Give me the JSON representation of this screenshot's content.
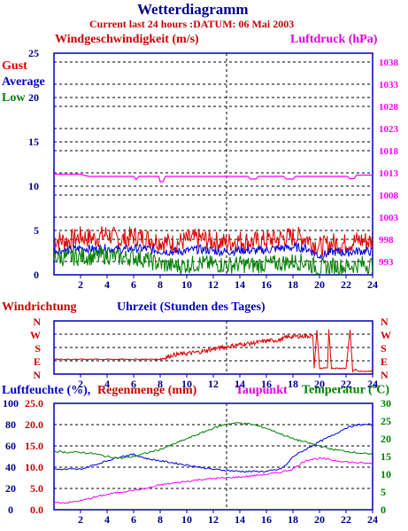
{
  "header": {
    "title": "Wetterdiagramm",
    "subtitle": "Current last 24 hours :DATUM: 06 Mai 2003"
  },
  "colors": {
    "red": "#e00000",
    "blue": "#0000e0",
    "green": "#008000",
    "magenta": "#ff00ff",
    "darkblue": "#00008b",
    "axis": "#0000b0"
  },
  "chart_data": [
    {
      "type": "line",
      "title": "Windgeschwindigkeit (m/s)",
      "ylabel": "Windgeschwindigkeit (m/s)",
      "y2label": "Luftdruck (hPa)",
      "xlabel": "",
      "x_ticks": [
        2,
        4,
        6,
        8,
        10,
        12,
        14,
        16,
        18,
        20,
        22,
        24
      ],
      "ylim": [
        0,
        25
      ],
      "y_ticks": [
        0,
        5,
        10,
        15,
        20,
        25
      ],
      "y2lim": [
        990,
        1040
      ],
      "y2_ticks": [
        993,
        998,
        1003,
        1008,
        1013,
        1018,
        1023,
        1028,
        1033,
        1038
      ],
      "grid": true,
      "series": [
        {
          "name": "Gust",
          "axis": "left",
          "color": "#e00000",
          "x": [
            0,
            1,
            2,
            3,
            4,
            5,
            6,
            7,
            8,
            9,
            10,
            11,
            12,
            13,
            14,
            15,
            16,
            17,
            18,
            19,
            20,
            21,
            22,
            23,
            24
          ],
          "values": [
            4,
            3.8,
            4.3,
            4.1,
            4.6,
            3.9,
            4.4,
            4.1,
            3.8,
            3.5,
            3.9,
            4.1,
            3.8,
            3.6,
            3.9,
            3.7,
            3.9,
            4.1,
            4.3,
            4.2,
            3.1,
            3.6,
            3.5,
            3.9,
            3.7
          ]
        },
        {
          "name": "Average",
          "axis": "left",
          "color": "#0000e0",
          "x": [
            0,
            1,
            2,
            3,
            4,
            5,
            6,
            7,
            8,
            9,
            10,
            11,
            12,
            13,
            14,
            15,
            16,
            17,
            18,
            19,
            20,
            21,
            22,
            23,
            24
          ],
          "values": [
            2.8,
            2.7,
            3,
            2.9,
            3,
            2.8,
            3,
            2.9,
            2.7,
            2.6,
            2.7,
            2.9,
            2.7,
            2.6,
            2.8,
            2.7,
            2.8,
            3,
            3.1,
            3,
            2.1,
            2.6,
            2.5,
            2.7,
            2.6
          ]
        },
        {
          "name": "Low",
          "axis": "left",
          "color": "#008000",
          "x": [
            0,
            1,
            2,
            3,
            4,
            5,
            6,
            7,
            8,
            9,
            10,
            11,
            12,
            13,
            14,
            15,
            16,
            17,
            18,
            19,
            20,
            21,
            22,
            23,
            24
          ],
          "values": [
            2,
            1.9,
            2.1,
            2,
            2.2,
            1.9,
            2,
            1.7,
            1.2,
            1,
            1.1,
            1.3,
            1.2,
            1.1,
            1.2,
            1.1,
            1.2,
            1.3,
            1.5,
            1.4,
            0.7,
            1,
            0.9,
            1.2,
            1.1
          ]
        },
        {
          "name": "Luftdruck (hPa)",
          "axis": "right",
          "color": "#ff00ff",
          "x": [
            0,
            2,
            2.6,
            6,
            6.2,
            6.4,
            7.9,
            8,
            8.2,
            8.4,
            14.6,
            14.8,
            15.2,
            15.4,
            17.3,
            17.5,
            18,
            18.2,
            22.1,
            22.3,
            22.6,
            22.8,
            24
          ],
          "values": [
            1012.7,
            1012.7,
            1012.2,
            1012.2,
            1011.5,
            1012.2,
            1012.2,
            1011,
            1011,
            1012.2,
            1012.2,
            1011.6,
            1011.6,
            1012.2,
            1012.2,
            1011.6,
            1011.6,
            1012.2,
            1012.2,
            1011.7,
            1011.7,
            1012.5,
            1012.5
          ]
        }
      ]
    },
    {
      "type": "line",
      "title": "Windrichtung",
      "ylabel": "Windrichtung",
      "xlabel": "Uhrzeit (Stunden des Tages)",
      "x_ticks": [
        2,
        4,
        6,
        8,
        10,
        12,
        14,
        16,
        18,
        20,
        22,
        24
      ],
      "y_categories": [
        "N",
        "W",
        "S",
        "E",
        "N"
      ],
      "ylim": [
        0,
        360
      ],
      "grid": true,
      "series": [
        {
          "name": "Windrichtung",
          "color": "#e00000",
          "x": [
            0,
            1,
            2,
            3,
            4,
            5,
            6,
            7,
            8,
            9,
            10,
            11,
            12,
            13,
            14,
            15,
            16,
            17,
            17.5,
            18,
            18.5,
            19,
            19.5,
            19.6,
            19.8,
            20,
            20.6,
            20.7,
            20.9,
            21,
            22,
            22.3,
            22.5,
            22.7,
            23,
            24
          ],
          "values": [
            100,
            100,
            100,
            100,
            100,
            100,
            100,
            100,
            100,
            130,
            140,
            150,
            170,
            185,
            200,
            210,
            225,
            230,
            250,
            255,
            255,
            258,
            258,
            40,
            300,
            40,
            40,
            300,
            40,
            40,
            40,
            300,
            20,
            30,
            20,
            20
          ]
        }
      ]
    },
    {
      "type": "line",
      "title": "Luftfeuchte (%), Regenmenge (mm), Taupunkt, Temperatur (°C)",
      "ylabel": "Luftfeuchte (%)",
      "y2label": "Temperatur (°C)",
      "xlabel": "",
      "x_ticks": [
        2,
        4,
        6,
        8,
        10,
        12,
        14,
        16,
        18,
        20,
        22,
        24
      ],
      "ylim": [
        0,
        100
      ],
      "y_ticks": [
        0,
        20,
        40,
        60,
        80,
        100
      ],
      "rain_ticks": [
        "0.0",
        "5.0",
        "10.0",
        "15.0",
        "20.0",
        "25.0"
      ],
      "y2lim": [
        0,
        30
      ],
      "y2_ticks": [
        0,
        5,
        10,
        15,
        20,
        25,
        30
      ],
      "grid": true,
      "series": [
        {
          "name": "Luftfeuchte (%)",
          "axis": "left",
          "color": "#0000e0",
          "x": [
            0,
            2,
            3,
            4,
            5,
            6,
            7,
            8,
            9,
            10,
            11,
            12,
            13,
            14,
            15,
            16,
            17,
            17.5,
            18,
            19,
            20,
            21,
            22,
            23,
            24
          ],
          "values": [
            38,
            38,
            42,
            46,
            50,
            52,
            48,
            46,
            44,
            42,
            40,
            38,
            37,
            36,
            36,
            36,
            38,
            42,
            50,
            57,
            64,
            70,
            77,
            80,
            80
          ]
        },
        {
          "name": "Temperatur (°C)",
          "axis": "right",
          "color": "#008000",
          "x": [
            0,
            1,
            2,
            3,
            4,
            5,
            6,
            7,
            8,
            9,
            10,
            11,
            12,
            13,
            14,
            15,
            16,
            17,
            18,
            19,
            20,
            21,
            22,
            23,
            24
          ],
          "values": [
            16.5,
            16.2,
            16.2,
            15.8,
            15,
            14.5,
            15,
            16,
            17,
            18.5,
            20,
            21.5,
            23,
            24.2,
            24.5,
            24,
            23,
            21.5,
            20,
            19,
            18,
            17,
            16.5,
            16,
            15.5
          ]
        },
        {
          "name": "Taupunkt",
          "axis": "right",
          "color": "#ff00ff",
          "x": [
            0,
            1,
            2,
            3,
            4,
            5,
            6,
            7,
            8,
            9,
            10,
            11,
            12,
            13,
            14,
            15,
            16,
            17,
            18,
            19,
            20,
            21,
            22,
            23,
            24
          ],
          "values": [
            2,
            2,
            2.5,
            3.5,
            4.3,
            5,
            5.5,
            6,
            7,
            7.5,
            8,
            8.5,
            8.8,
            9,
            9.2,
            9.6,
            10,
            10.5,
            11.5,
            14,
            14.5,
            14,
            13.5,
            13.2,
            13
          ]
        }
      ]
    }
  ],
  "panel1": {
    "left_title": "Windgeschwindigkeit (m/s)",
    "right_title": "Luftdruck (hPa)",
    "legend_gust": "Gust",
    "legend_average": "Average",
    "legend_low": "Low"
  },
  "panel2": {
    "left_title": "Windrichtung",
    "center_title": "Uhrzeit (Stunden des Tages)"
  },
  "panel3": {
    "humidity_title": "Luftfeuchte (%),",
    "rain_title": "Regenmenge (mm)",
    "dew_title": "Taupunkt",
    "temp_title": "Temperatur (",
    "temp_unit": "°C)"
  }
}
